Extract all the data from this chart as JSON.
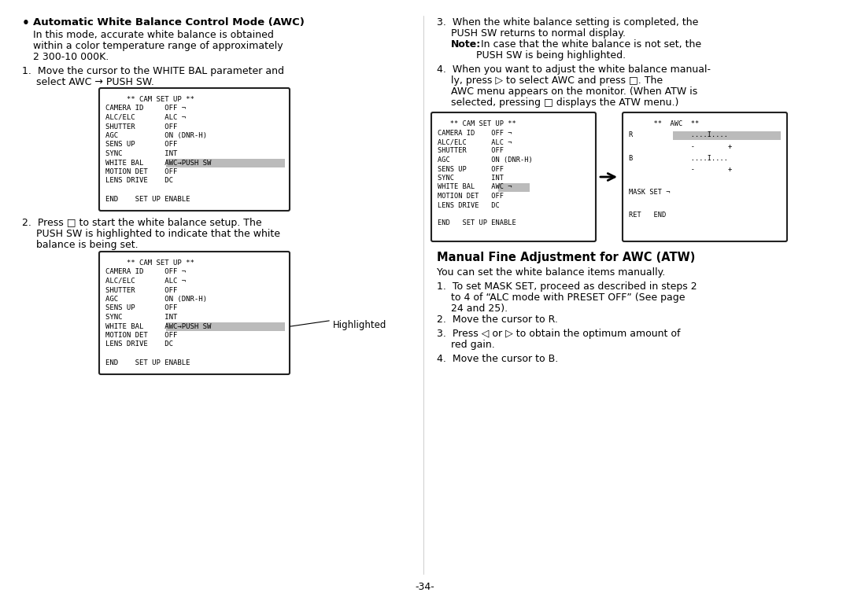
{
  "bg_color": "#ffffff",
  "page_number": "-34-",
  "box1_lines": [
    "     ** CAM SET UP **",
    "CAMERA ID     OFF ¬",
    "ALC/ELC       ALC ¬",
    "SHUTTER       OFF",
    "AGC           ON (DNR-H)",
    "SENS UP       OFF",
    "SYNC          INT",
    "WHITE BAL     AWC→PUSH SW",
    "MOTION DET    OFF",
    "LENS DRIVE    DC",
    "",
    "END    SET UP ENABLE"
  ],
  "box2_lines": [
    "     ** CAM SET UP **",
    "CAMERA ID     OFF ¬",
    "ALC/ELC       ALC ¬",
    "SHUTTER       OFF",
    "AGC           ON (DNR-H)",
    "SENS UP       OFF",
    "SYNC          INT",
    "WHITE BAL     AWC→PUSH SW",
    "MOTION DET    OFF",
    "LENS DRIVE    DC",
    "",
    "END    SET UP ENABLE"
  ],
  "box3_lines": [
    "   ** CAM SET UP **",
    "CAMERA ID    OFF ¬",
    "ALC/ELC      ALC ¬",
    "SHUTTER      OFF",
    "AGC          ON (DNR-H)",
    "SENS UP      OFF",
    "SYNC         INT",
    "WHITE BAL    AWC ¬",
    "MOTION DET   OFF",
    "LENS DRIVE   DC",
    "",
    "END   SET UP ENABLE"
  ],
  "box4_lines": [
    "      **  AWC  **",
    "R              ....I....",
    "               -        +",
    "B              ....I....",
    "               -        +",
    "",
    "MASK SET ¬",
    "",
    "RET   END"
  ]
}
